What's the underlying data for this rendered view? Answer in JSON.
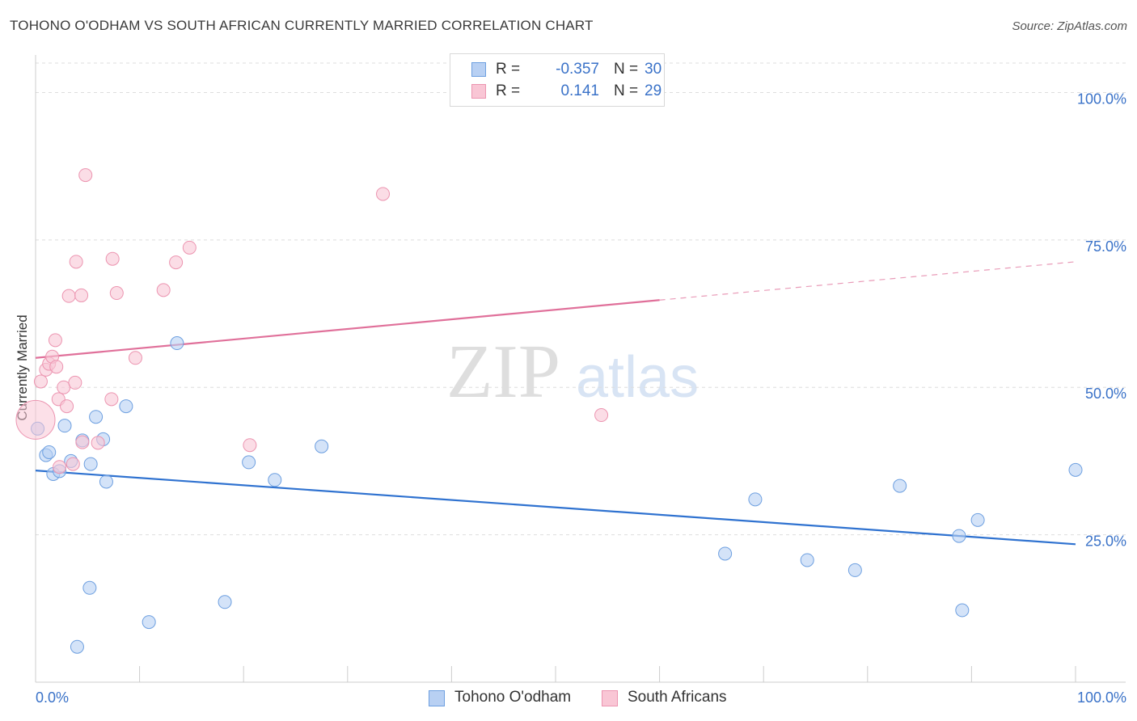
{
  "header": {
    "title": "TOHONO O'ODHAM VS SOUTH AFRICAN CURRENTLY MARRIED CORRELATION CHART",
    "source": "Source: ZipAtlas.com"
  },
  "watermark": {
    "zip": "ZIP",
    "atlas": "atlas"
  },
  "legend_top": [
    {
      "r_key": "R =",
      "r_value": "-0.357",
      "n_key": "N =",
      "n_value": "30"
    },
    {
      "r_key": "R =",
      "r_value": "0.141",
      "n_key": "N =",
      "n_value": "29"
    }
  ],
  "colors": {
    "blue_fill": "#b8d0f3",
    "blue_stroke": "#6d9fe0",
    "blue_line": "#2f72d0",
    "pink_fill": "#f9c6d5",
    "pink_stroke": "#ec94b0",
    "pink_line": "#e0709a",
    "tick_text": "#3a72c8",
    "grid": "#dddddd"
  },
  "chart_data": {
    "type": "scatter",
    "title": "TOHONO O'ODHAM VS SOUTH AFRICAN CURRENTLY MARRIED CORRELATION CHART",
    "xlabel": "",
    "ylabel": "Currently Married",
    "xlim": [
      0,
      100
    ],
    "ylim": [
      0,
      105
    ],
    "x_tick_labels": [
      "0.0%",
      "100.0%"
    ],
    "y_ticks": [
      {
        "value": 25,
        "label": "25.0%"
      },
      {
        "value": 50,
        "label": "50.0%"
      },
      {
        "value": 75,
        "label": "75.0%"
      },
      {
        "value": 100,
        "label": "100.0%"
      }
    ],
    "grid": true,
    "legend_position": "bottom",
    "series": [
      {
        "name": "Tohono O'odham",
        "color": "blue",
        "points": [
          [
            0.2,
            43.0
          ],
          [
            1.0,
            38.5
          ],
          [
            1.3,
            39.0
          ],
          [
            1.7,
            35.3
          ],
          [
            2.3,
            35.8
          ],
          [
            2.8,
            43.5
          ],
          [
            3.4,
            37.5
          ],
          [
            4.0,
            6.0
          ],
          [
            4.5,
            41.0
          ],
          [
            5.2,
            16.0
          ],
          [
            5.3,
            37.0
          ],
          [
            5.8,
            45.0
          ],
          [
            6.5,
            41.2
          ],
          [
            6.8,
            34.0
          ],
          [
            8.7,
            46.8
          ],
          [
            10.9,
            10.2
          ],
          [
            13.6,
            57.5
          ],
          [
            18.2,
            13.6
          ],
          [
            20.5,
            37.3
          ],
          [
            23.0,
            34.3
          ],
          [
            27.5,
            40.0
          ],
          [
            66.3,
            21.8
          ],
          [
            69.2,
            31.0
          ],
          [
            74.2,
            20.7
          ],
          [
            78.8,
            19.0
          ],
          [
            83.1,
            33.3
          ],
          [
            88.8,
            24.8
          ],
          [
            89.1,
            12.2
          ],
          [
            90.6,
            27.5
          ],
          [
            100.0,
            36.0
          ]
        ],
        "trend": {
          "x": [
            0,
            100
          ],
          "y": [
            35.9,
            23.4
          ],
          "style": "solid"
        }
      },
      {
        "name": "South Africans",
        "color": "pink",
        "points": [
          [
            0.0,
            44.5
          ],
          [
            0.5,
            51.0
          ],
          [
            1.0,
            53.0
          ],
          [
            1.3,
            54.0
          ],
          [
            1.6,
            55.2
          ],
          [
            1.9,
            58.0
          ],
          [
            2.2,
            48.0
          ],
          [
            2.3,
            36.5
          ],
          [
            2.7,
            50.0
          ],
          [
            3.0,
            46.8
          ],
          [
            3.2,
            65.5
          ],
          [
            3.6,
            37.0
          ],
          [
            3.8,
            50.8
          ],
          [
            3.9,
            71.3
          ],
          [
            4.4,
            65.6
          ],
          [
            4.5,
            40.7
          ],
          [
            4.8,
            86.0
          ],
          [
            6.0,
            40.6
          ],
          [
            7.3,
            48.0
          ],
          [
            7.4,
            71.8
          ],
          [
            7.8,
            66.0
          ],
          [
            9.6,
            55.0
          ],
          [
            12.3,
            66.5
          ],
          [
            13.5,
            71.2
          ],
          [
            14.8,
            73.7
          ],
          [
            20.6,
            40.2
          ],
          [
            33.4,
            82.8
          ],
          [
            54.4,
            45.3
          ],
          [
            2.0,
            53.5
          ]
        ],
        "big_point": [
          0.0,
          44.5
        ],
        "trend": {
          "x": [
            0,
            60
          ],
          "y": [
            55.0,
            64.8
          ],
          "style": "solid"
        },
        "trend_extension": {
          "x": [
            60,
            100
          ],
          "y": [
            64.8,
            71.3
          ],
          "style": "dashed"
        }
      }
    ]
  }
}
